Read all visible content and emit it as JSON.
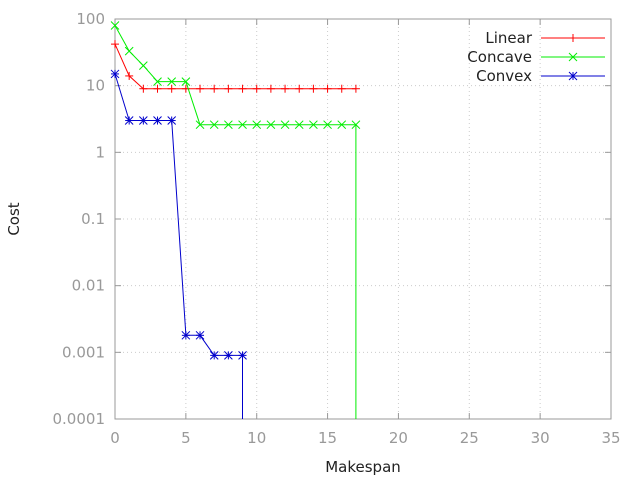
{
  "chart_data": {
    "type": "line",
    "title": "",
    "xlabel": "Makespan",
    "ylabel": "Cost",
    "xlim": [
      0,
      35
    ],
    "ylim": [
      0.0001,
      100
    ],
    "yscale": "log",
    "grid": true,
    "legend_position": "top-right",
    "x_ticks": [
      0,
      5,
      10,
      15,
      20,
      25,
      30,
      35
    ],
    "x_tick_labels": [
      "0",
      "5",
      "10",
      "15",
      "20",
      "25",
      "30",
      "35"
    ],
    "y_ticks": [
      0.0001,
      0.001,
      0.01,
      0.1,
      1,
      10,
      100
    ],
    "y_tick_labels": [
      "0.0001",
      "0.001",
      "0.01",
      "0.1",
      "1",
      "10",
      "100"
    ],
    "series": [
      {
        "name": "Linear",
        "color": "#ff0000",
        "marker": "plus",
        "x": [
          0,
          1,
          2,
          3,
          4,
          5,
          6,
          7,
          8,
          9,
          10,
          11,
          12,
          13,
          14,
          15,
          16,
          17
        ],
        "y": [
          42,
          14,
          9,
          9,
          9,
          9,
          9,
          9,
          9,
          9,
          9,
          9,
          9,
          9,
          9,
          9,
          9,
          9
        ],
        "drop_at_end": false
      },
      {
        "name": "Concave",
        "color": "#00ee00",
        "marker": "x",
        "x": [
          0,
          1,
          2,
          3,
          4,
          5,
          6,
          7,
          8,
          9,
          10,
          11,
          12,
          13,
          14,
          15,
          16,
          17
        ],
        "y": [
          80,
          33,
          20,
          11.5,
          11.5,
          11.5,
          2.6,
          2.6,
          2.6,
          2.6,
          2.6,
          2.6,
          2.6,
          2.6,
          2.6,
          2.6,
          2.6,
          2.6
        ],
        "drop_at_end": true
      },
      {
        "name": "Convex",
        "color": "#0000cc",
        "marker": "star",
        "x": [
          0,
          1,
          2,
          3,
          4,
          5,
          6,
          7,
          8,
          9
        ],
        "y": [
          15,
          3,
          3,
          3,
          3,
          0.0018,
          0.0018,
          0.0009,
          0.0009,
          0.0009
        ],
        "drop_at_end": true
      }
    ]
  }
}
